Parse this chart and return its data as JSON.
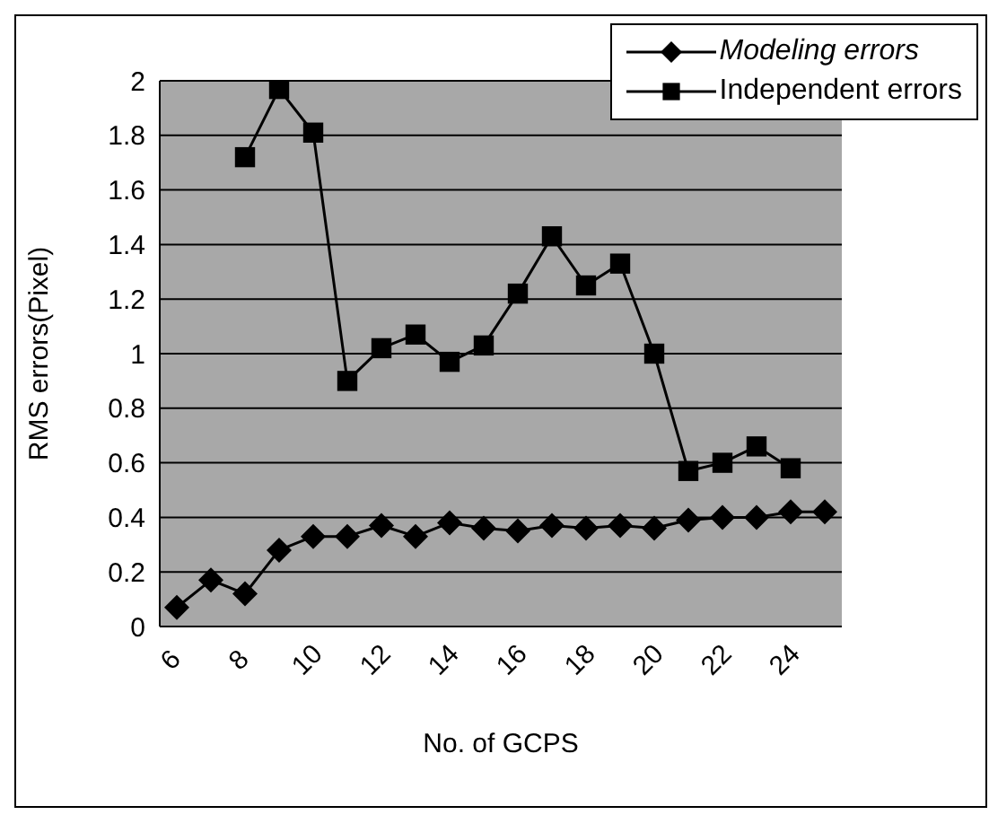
{
  "chart_data": {
    "type": "line",
    "xlabel": "No. of GCPS",
    "ylabel": "RMS errors(Pixel)",
    "x": [
      6,
      7,
      8,
      9,
      10,
      11,
      12,
      13,
      14,
      15,
      16,
      17,
      18,
      19,
      20,
      21,
      22,
      23,
      24,
      25
    ],
    "xlim": [
      5.5,
      25.5
    ],
    "xticks": [
      6,
      8,
      10,
      12,
      14,
      16,
      18,
      20,
      22,
      24
    ],
    "ylim": [
      0,
      2
    ],
    "yticks": [
      0,
      0.2,
      0.4,
      0.6,
      0.8,
      1,
      1.2,
      1.4,
      1.6,
      1.8,
      2
    ],
    "grid": "y",
    "legend": "top right",
    "series": [
      {
        "name": "Modeling errors",
        "color": "#000000",
        "marker": "diamond",
        "values": [
          0.07,
          0.17,
          0.12,
          0.28,
          0.33,
          0.33,
          0.37,
          0.33,
          0.38,
          0.36,
          0.35,
          0.37,
          0.36,
          0.37,
          0.36,
          0.39,
          0.4,
          0.4,
          0.42,
          0.42
        ]
      },
      {
        "name": "Independent errors",
        "color": "#000000",
        "marker": "square",
        "values": [
          null,
          null,
          1.72,
          1.97,
          1.81,
          0.9,
          1.02,
          1.07,
          0.97,
          1.03,
          1.22,
          1.43,
          1.25,
          1.33,
          1,
          0.57,
          0.6,
          0.66,
          0.58,
          null
        ]
      }
    ]
  }
}
